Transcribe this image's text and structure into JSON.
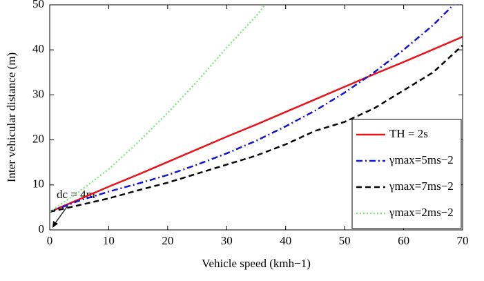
{
  "chart_data": {
    "type": "line",
    "xlabel": "Vehicle speed (kmh−1)",
    "ylabel": "Inter vehicular distance (m)",
    "annotation": "dc = 4m",
    "x": [
      0,
      5,
      10,
      15,
      20,
      25,
      30,
      35,
      40,
      45,
      50,
      55,
      60,
      65,
      70
    ],
    "series": [
      {
        "name": "TH = 2s",
        "color": "#e8141c",
        "dash": "solid",
        "values": [
          4,
          6.8,
          9.6,
          12.3,
          15.1,
          17.9,
          20.7,
          23.4,
          26.2,
          29,
          31.8,
          34.6,
          37.3,
          40.1,
          42.9
        ]
      },
      {
        "name": "γmax=5ms−2",
        "color": "#1414d0",
        "dash": "dashdot",
        "values": [
          4,
          6.5,
          8.5,
          10.3,
          12.2,
          14.5,
          17,
          19.8,
          23,
          26.5,
          30.5,
          35,
          40,
          45.5,
          52
        ]
      },
      {
        "name": "γmax=7ms−2",
        "color": "#000000",
        "dash": "dashed",
        "values": [
          4,
          5.5,
          7,
          8.8,
          10.5,
          12.5,
          14.5,
          16.5,
          19,
          22,
          24,
          27,
          31,
          35,
          41
        ]
      },
      {
        "name": "γmax=2ms−2",
        "color": "#7ee87e",
        "dash": "dotted",
        "values": [
          4,
          8.5,
          13.5,
          19.5,
          26,
          33,
          40.5,
          47.5,
          56,
          null,
          null,
          null,
          null,
          null,
          null
        ]
      }
    ],
    "xlim": [
      0,
      70
    ],
    "ylim": [
      0,
      50
    ],
    "xticks": [
      0,
      10,
      20,
      30,
      40,
      50,
      60,
      70
    ],
    "yticks": [
      0,
      10,
      20,
      30,
      40,
      50
    ],
    "grid": false,
    "legend": "lower right"
  }
}
